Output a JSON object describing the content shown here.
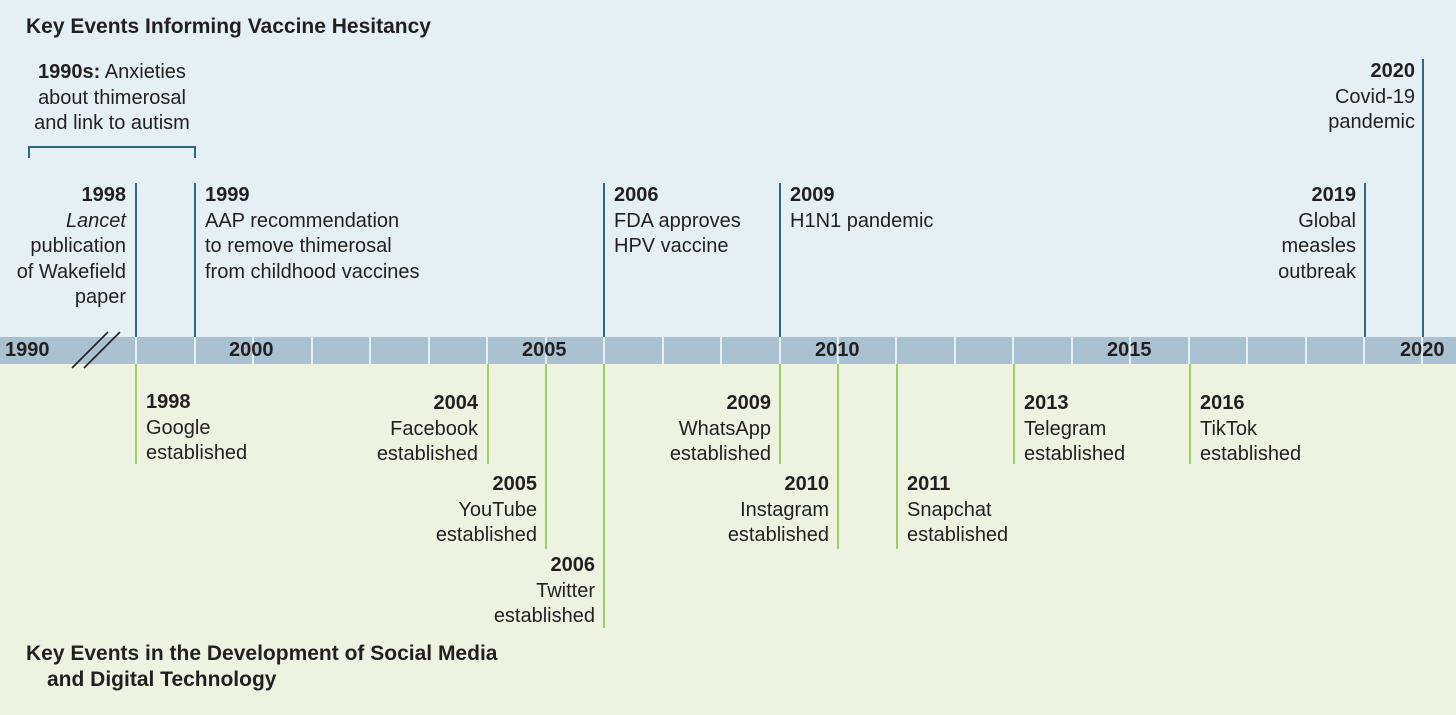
{
  "titles": {
    "top": "Key Events Informing Vaccine Hesitancy",
    "bottom_line1": "Key Events in the Development of Social Media",
    "bottom_line2": "and Digital Technology"
  },
  "axis": {
    "labels": [
      "1990",
      "2000",
      "2005",
      "2010",
      "2015",
      "2020"
    ]
  },
  "vaccine_events": {
    "e1990s": {
      "year": "1990s:",
      "line1": "Anxieties",
      "line2": "about thimerosal",
      "line3": "and link to autism"
    },
    "e1998": {
      "year": "1998",
      "line1_italic": "Lancet",
      "line2": "publication",
      "line3": "of Wakefield",
      "line4": "paper"
    },
    "e1999": {
      "year": "1999",
      "line1": "AAP recommendation",
      "line2": "to remove thimerosal",
      "line3": "from childhood vaccines"
    },
    "e2006": {
      "year": "2006",
      "line1": "FDA approves",
      "line2": "HPV vaccine"
    },
    "e2009": {
      "year": "2009",
      "line1": "H1N1 pandemic"
    },
    "e2019": {
      "year": "2019",
      "line1": "Global",
      "line2": "measles",
      "line3": "outbreak"
    },
    "e2020": {
      "year": "2020",
      "line1": "Covid-19",
      "line2": "pandemic"
    }
  },
  "tech_events": {
    "google": {
      "year": "1998",
      "name": "Google",
      "status": "established"
    },
    "facebook": {
      "year": "2004",
      "name": "Facebook",
      "status": "established"
    },
    "youtube": {
      "year": "2005",
      "name": "YouTube",
      "status": "established"
    },
    "twitter": {
      "year": "2006",
      "name": "Twitter",
      "status": "established"
    },
    "whatsapp": {
      "year": "2009",
      "name": "WhatsApp",
      "status": "established"
    },
    "instagram": {
      "year": "2010",
      "name": "Instagram",
      "status": "established"
    },
    "snapchat": {
      "year": "2011",
      "name": "Snapchat",
      "status": "established"
    },
    "telegram": {
      "year": "2013",
      "name": "Telegram",
      "status": "established"
    },
    "tiktok": {
      "year": "2016",
      "name": "TikTok",
      "status": "established"
    }
  },
  "colors": {
    "top_background": "#e4eff6",
    "bottom_background": "#eef3e1",
    "axis_band": "#a9c1d0",
    "vaccine_line": "#2f6680",
    "tech_line": "#9ccd6a"
  }
}
